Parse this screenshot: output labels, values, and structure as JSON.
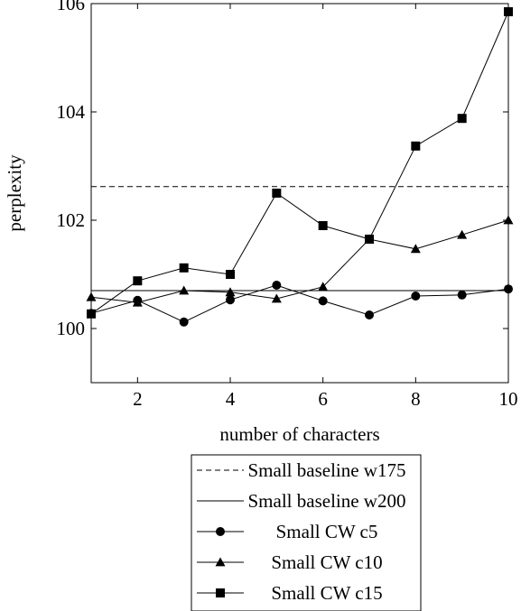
{
  "chart_data": {
    "type": "line",
    "title": "",
    "xlabel": "number of characters",
    "ylabel": "perplexity",
    "xlim": [
      1,
      10
    ],
    "ylim": [
      99,
      106
    ],
    "xticks": [
      2,
      4,
      6,
      8,
      10
    ],
    "yticks": [
      100,
      102,
      104,
      106
    ],
    "grid": false,
    "legend_position": "below",
    "series": [
      {
        "name": "Small baseline w175",
        "style": "dashed",
        "marker": "none",
        "x": [
          1,
          10
        ],
        "values": [
          102.62,
          102.62
        ]
      },
      {
        "name": "Small baseline w200",
        "style": "solid",
        "marker": "none",
        "x": [
          1,
          10
        ],
        "values": [
          100.7,
          100.7
        ]
      },
      {
        "name": "Small CW c5",
        "style": "solid",
        "marker": "circle",
        "x": [
          1,
          2,
          3,
          4,
          5,
          6,
          7,
          8,
          9,
          10
        ],
        "values": [
          100.28,
          100.52,
          100.12,
          100.53,
          100.8,
          100.51,
          100.25,
          100.6,
          100.62,
          100.73
        ]
      },
      {
        "name": "Small CW c10",
        "style": "solid",
        "marker": "triangle",
        "x": [
          1,
          2,
          3,
          4,
          5,
          6,
          7,
          8,
          9,
          10
        ],
        "values": [
          100.58,
          100.48,
          100.7,
          100.67,
          100.55,
          100.77,
          101.65,
          101.47,
          101.73,
          102.0
        ]
      },
      {
        "name": "Small CW c15",
        "style": "solid",
        "marker": "square",
        "x": [
          1,
          2,
          3,
          4,
          5,
          6,
          7,
          8,
          9,
          10
        ],
        "values": [
          100.27,
          100.88,
          101.12,
          101.0,
          102.5,
          101.9,
          101.65,
          103.37,
          103.88,
          105.85
        ]
      }
    ]
  }
}
